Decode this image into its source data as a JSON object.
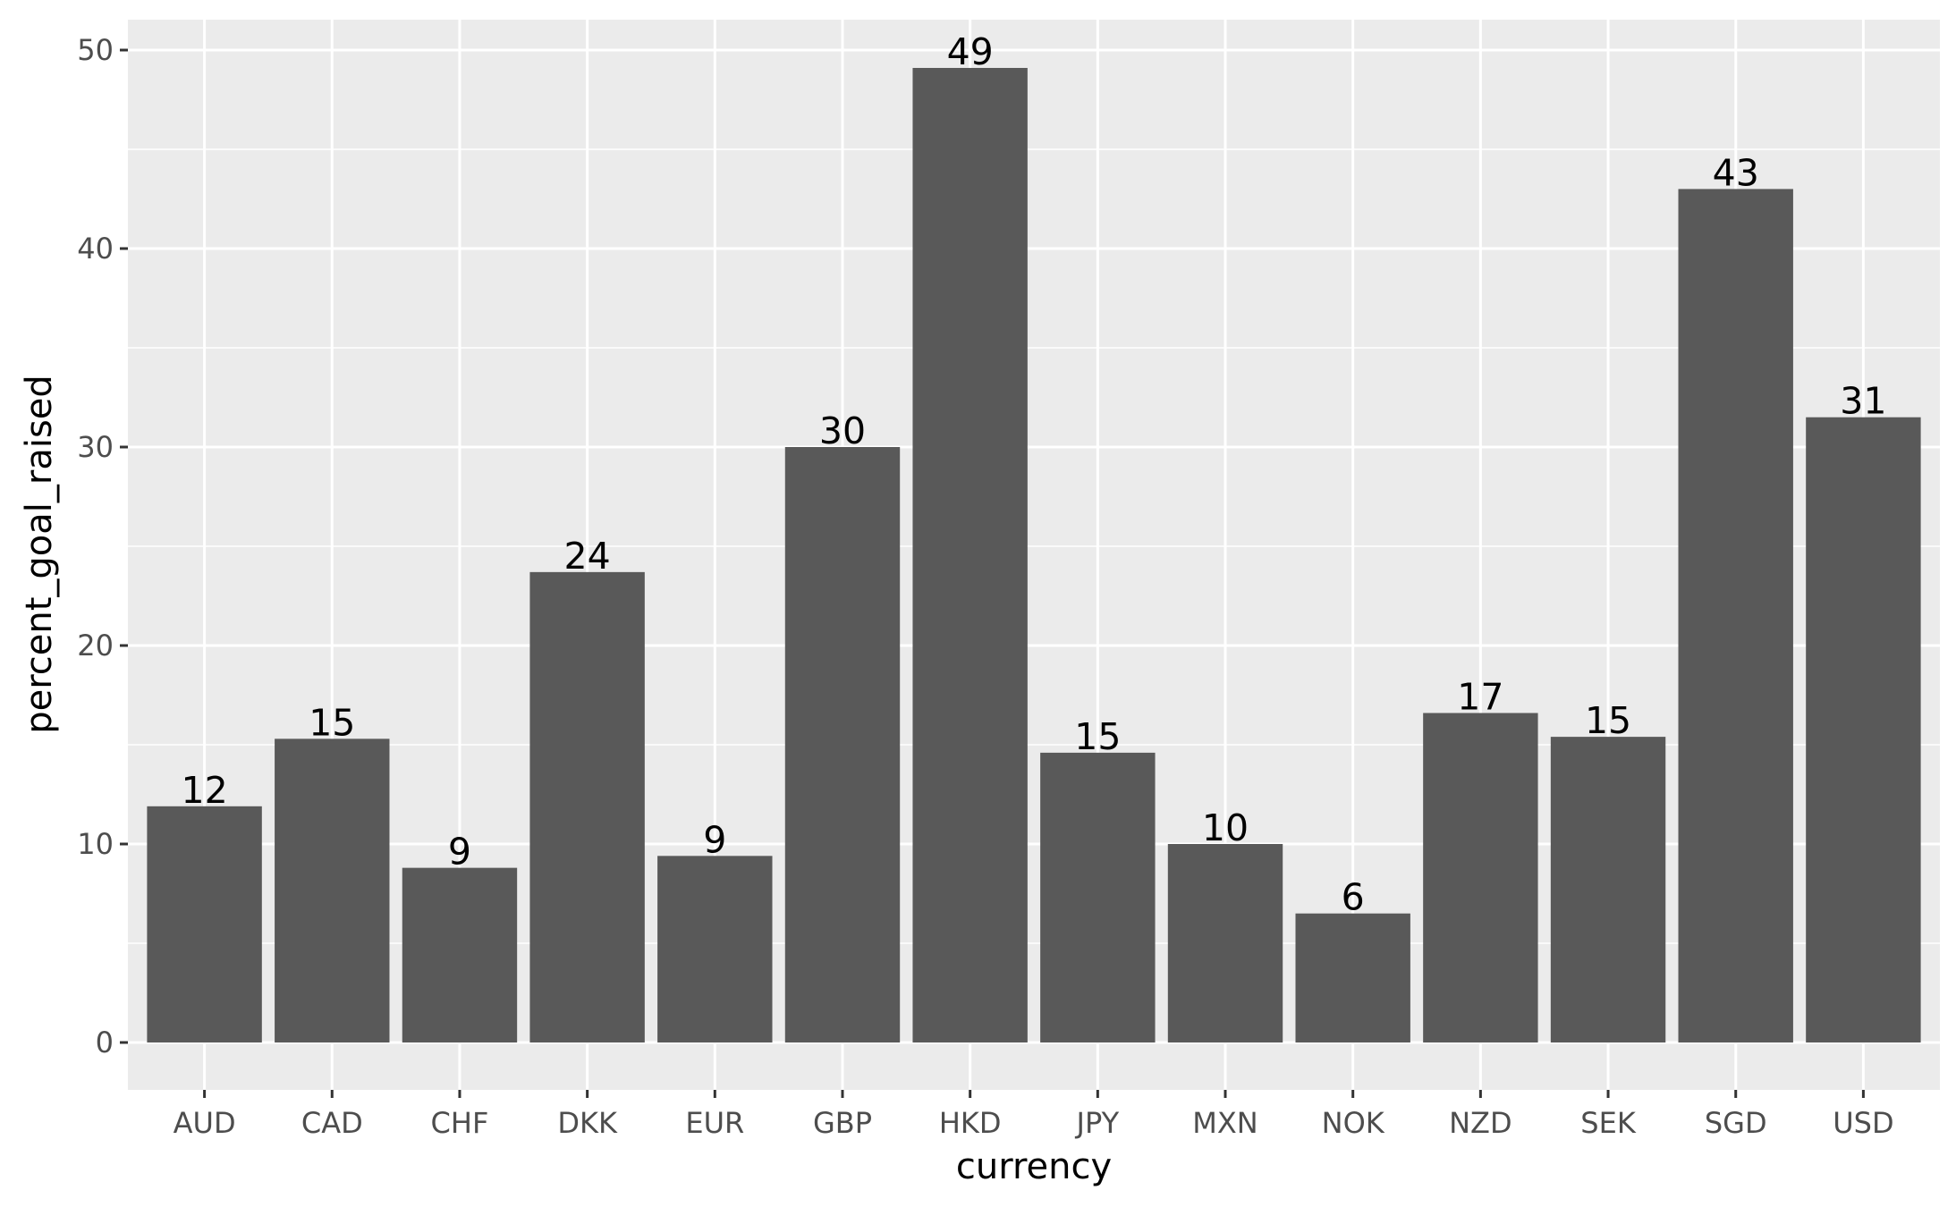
{
  "chart_data": {
    "type": "bar",
    "title": "",
    "xlabel": "currency",
    "ylabel": "percent_goal_raised",
    "categories": [
      "AUD",
      "CAD",
      "CHF",
      "DKK",
      "EUR",
      "GBP",
      "HKD",
      "JPY",
      "MXN",
      "NOK",
      "NZD",
      "SEK",
      "SGD",
      "USD"
    ],
    "values": [
      11.9,
      15.3,
      8.8,
      23.7,
      9.4,
      30.0,
      49.1,
      14.6,
      10.0,
      6.5,
      16.6,
      15.4,
      43.0,
      31.5
    ],
    "data_labels": [
      "12",
      "15",
      "9",
      "24",
      "9",
      "30",
      "49",
      "15",
      "10",
      "6",
      "17",
      "15",
      "43",
      "31"
    ],
    "ylim": [
      0,
      50
    ],
    "yticks": [
      0,
      10,
      20,
      30,
      40,
      50
    ],
    "ytick_labels": [
      "0",
      "10",
      "20",
      "30",
      "40",
      "50"
    ],
    "grid": true,
    "legend": "none",
    "colors": {
      "bar": "#595959",
      "panel_background": "#ebebeb",
      "grid_line": "#ffffff",
      "tick_label": "#4d4d4d",
      "axis_title": "#000000"
    }
  }
}
